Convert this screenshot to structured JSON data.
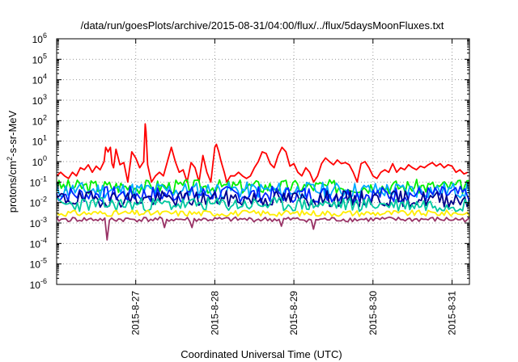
{
  "chart_data": {
    "type": "line",
    "title": "/data/run/goesPlots/archive/2015-08-31/04:00/flux/../flux/5daysMoonFluxes.txt",
    "xlabel": "Coordinated Universal Time (UTC)",
    "ylabel_main": "protons/cm",
    "ylabel_sup": "2",
    "ylabel_rest": "-s-sr-MeV",
    "y_scale": "log",
    "y_ticks_exp": [
      -6,
      -5,
      -4,
      -3,
      -2,
      -1,
      0,
      1,
      2,
      3,
      4,
      5,
      6
    ],
    "y_tick_base": "10",
    "x_tick_labels": [
      "2015-8-27",
      "2015-8-28",
      "2015-8-29",
      "2015-8-30",
      "2015-8-31"
    ],
    "x_range_days": [
      26.0,
      31.22
    ],
    "grid": true,
    "legend": "none",
    "series": [
      {
        "color": "#ff0000",
        "x": [
          26.0,
          26.05,
          26.1,
          26.15,
          26.2,
          26.25,
          26.3,
          26.35,
          26.4,
          26.45,
          26.5,
          26.55,
          26.6,
          26.62,
          26.65,
          26.68,
          26.7,
          26.72,
          26.75,
          26.8,
          26.85,
          26.9,
          26.95,
          27.0,
          27.05,
          27.1,
          27.12,
          27.13,
          27.15,
          27.2,
          27.25,
          27.3,
          27.35,
          27.4,
          27.45,
          27.5,
          27.55,
          27.6,
          27.65,
          27.7,
          27.75,
          27.8,
          27.85,
          27.9,
          27.95,
          28.0,
          28.02,
          28.05,
          28.08,
          28.12,
          28.15,
          28.2,
          28.25,
          28.3,
          28.35,
          28.4,
          28.45,
          28.5,
          28.55,
          28.6,
          28.65,
          28.7,
          28.75,
          28.8,
          28.85,
          28.9,
          28.95,
          29.0,
          29.05,
          29.1,
          29.15,
          29.2,
          29.25,
          29.3,
          29.35,
          29.4,
          29.45,
          29.5,
          29.55,
          29.6,
          29.65,
          29.7,
          29.75,
          29.8,
          29.85,
          29.9,
          29.95,
          30.0,
          30.05,
          30.1,
          30.15,
          30.2,
          30.25,
          30.3,
          30.35,
          30.4,
          30.45,
          30.5,
          30.55,
          30.6,
          30.65,
          30.7,
          30.75,
          30.8,
          30.85,
          30.9,
          30.95,
          31.0,
          31.05,
          31.1,
          31.15,
          31.2
        ],
        "y": [
          0.2,
          0.3,
          0.2,
          0.15,
          0.3,
          0.2,
          0.5,
          0.4,
          0.7,
          0.3,
          0.6,
          0.4,
          1.0,
          5.0,
          3.0,
          5.0,
          0.8,
          0.5,
          4.0,
          0.7,
          0.9,
          0.1,
          3.0,
          1.5,
          0.5,
          1.0,
          70,
          30,
          0.7,
          0.1,
          0.2,
          0.3,
          0.2,
          1.0,
          5.0,
          1.0,
          0.3,
          0.4,
          0.1,
          0.9,
          0.5,
          0.1,
          2.0,
          0.3,
          0.1,
          5.0,
          7.0,
          3.0,
          1.0,
          0.3,
          0.1,
          0.2,
          0.2,
          0.3,
          0.2,
          0.15,
          0.2,
          0.5,
          1.0,
          3.0,
          2.5,
          0.8,
          0.5,
          2.0,
          5.0,
          3.0,
          0.6,
          0.8,
          0.3,
          0.2,
          0.5,
          0.3,
          0.1,
          0.2,
          0.8,
          1.5,
          1.0,
          0.7,
          1.2,
          0.8,
          0.9,
          0.7,
          0.3,
          0.1,
          0.8,
          1.0,
          0.5,
          0.2,
          0.15,
          0.3,
          0.4,
          0.3,
          0.8,
          0.3,
          0.5,
          0.4,
          0.7,
          0.5,
          0.4,
          0.6,
          0.5,
          0.7,
          0.9,
          0.6,
          0.8,
          0.5,
          0.7,
          0.6,
          0.3,
          0.4,
          0.25,
          0.3
        ]
      },
      {
        "color": "#00ee00",
        "baseline": 0.06,
        "amplitude": 0.35,
        "seed": 3
      },
      {
        "color": "#00aaff",
        "baseline": 0.04,
        "amplitude": 0.4,
        "seed": 11
      },
      {
        "color": "#0022ff",
        "baseline": 0.025,
        "amplitude": 0.4,
        "seed": 7
      },
      {
        "color": "#00008b",
        "baseline": 0.015,
        "amplitude": 0.4,
        "seed": 19
      },
      {
        "color": "#00c8a0",
        "baseline": 0.008,
        "amplitude": 0.35,
        "seed": 23
      },
      {
        "color": "#ffee00",
        "baseline": 0.003,
        "amplitude": 0.15,
        "seed": 31
      },
      {
        "color": "#993366",
        "baseline": 0.0015,
        "amplitude": 0.12,
        "seed": 41,
        "dips": [
          [
            26.65,
            0.00015
          ],
          [
            27.35,
            0.0006
          ],
          [
            27.7,
            0.0006
          ],
          [
            28.85,
            0.0007
          ],
          [
            29.25,
            0.0005
          ]
        ]
      }
    ]
  }
}
